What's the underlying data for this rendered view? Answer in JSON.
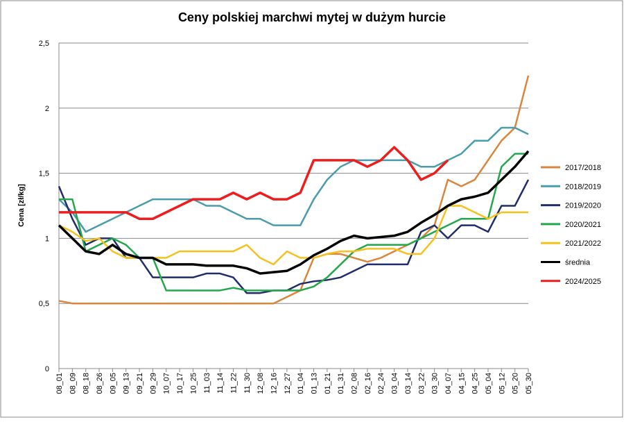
{
  "chart_data": {
    "type": "line",
    "title": "Ceny polskiej marchwi mytej w dużym hurcie",
    "y_label": "Cena [zł/kg]",
    "categories": [
      "08_01",
      "08_09",
      "08_18",
      "08_26",
      "09_05",
      "09_13",
      "09_21",
      "09_29",
      "10_07",
      "10_17",
      "10_25",
      "11_03",
      "11_14",
      "11_22",
      "11_30",
      "12_08",
      "12_16",
      "12_27",
      "01_04",
      "01_13",
      "01_21",
      "01_31",
      "02_08",
      "02_16",
      "02_24",
      "03_04",
      "03_14",
      "03_22",
      "03_30",
      "04_07",
      "04_15",
      "04_25",
      "05_04",
      "05_12",
      "05_20",
      "05_30"
    ],
    "ylim": [
      0,
      2.5
    ],
    "yticks": [
      0,
      {
        "value": 0.5,
        "label": "0,5"
      },
      1,
      {
        "value": 1.5,
        "label": "1,5"
      },
      2,
      {
        "value": 2.5,
        "label": "2,5"
      }
    ],
    "grid": true,
    "legend": "right",
    "series": [
      {
        "name": "2017/2018",
        "color": "#d9853b",
        "values": [
          0.52,
          0.5,
          0.5,
          0.5,
          0.5,
          0.5,
          0.5,
          0.5,
          0.5,
          0.5,
          0.5,
          0.5,
          0.5,
          0.5,
          0.5,
          0.5,
          0.5,
          0.55,
          0.6,
          0.85,
          0.88,
          0.88,
          0.85,
          0.82,
          0.85,
          0.9,
          0.95,
          1.0,
          1.1,
          1.45,
          1.4,
          1.45,
          1.6,
          1.75,
          1.85,
          2.25
        ]
      },
      {
        "name": "2018/2019",
        "color": "#4a9bab",
        "values": [
          1.3,
          1.2,
          1.05,
          1.1,
          1.15,
          1.2,
          1.25,
          1.3,
          1.3,
          1.3,
          1.3,
          1.25,
          1.25,
          1.2,
          1.15,
          1.15,
          1.1,
          1.1,
          1.1,
          1.3,
          1.45,
          1.55,
          1.6,
          1.6,
          1.6,
          1.6,
          1.6,
          1.55,
          1.55,
          1.6,
          1.65,
          1.75,
          1.75,
          1.85,
          1.85,
          1.8
        ]
      },
      {
        "name": "2019/2020",
        "color": "#1f2d6b",
        "values": [
          1.4,
          1.15,
          0.95,
          1.0,
          1.0,
          0.85,
          0.85,
          0.7,
          0.7,
          0.7,
          0.7,
          0.73,
          0.73,
          0.7,
          0.58,
          0.58,
          0.6,
          0.6,
          0.65,
          0.67,
          0.68,
          0.7,
          0.75,
          0.8,
          0.8,
          0.8,
          0.8,
          1.05,
          1.1,
          1.0,
          1.1,
          1.1,
          1.05,
          1.25,
          1.25,
          1.45
        ]
      },
      {
        "name": "2020/2021",
        "color": "#22a84a",
        "values": [
          1.3,
          1.3,
          0.9,
          0.95,
          1.0,
          0.95,
          0.85,
          0.85,
          0.6,
          0.6,
          0.6,
          0.6,
          0.6,
          0.62,
          0.6,
          0.6,
          0.6,
          0.6,
          0.6,
          0.63,
          0.7,
          0.8,
          0.9,
          0.95,
          0.95,
          0.95,
          0.95,
          1.0,
          1.05,
          1.1,
          1.15,
          1.15,
          1.15,
          1.55,
          1.65,
          1.65
        ]
      },
      {
        "name": "2021/2022",
        "color": "#f5c11c",
        "values": [
          1.1,
          1.05,
          0.98,
          1.0,
          0.9,
          0.85,
          0.85,
          0.85,
          0.85,
          0.9,
          0.9,
          0.9,
          0.9,
          0.9,
          0.95,
          0.85,
          0.8,
          0.9,
          0.85,
          0.85,
          0.88,
          0.9,
          0.9,
          0.92,
          0.92,
          0.92,
          0.88,
          0.88,
          1.0,
          1.25,
          1.25,
          1.2,
          1.15,
          1.2,
          1.2,
          1.2
        ]
      },
      {
        "name": "średnia",
        "color": "#000000",
        "values": [
          1.1,
          1.0,
          0.9,
          0.88,
          0.95,
          0.88,
          0.85,
          0.85,
          0.8,
          0.8,
          0.8,
          0.79,
          0.79,
          0.79,
          0.77,
          0.73,
          0.74,
          0.75,
          0.8,
          0.87,
          0.92,
          0.98,
          1.02,
          1.0,
          1.01,
          1.02,
          1.05,
          1.12,
          1.18,
          1.25,
          1.3,
          1.32,
          1.35,
          1.45,
          1.55,
          1.67
        ]
      },
      {
        "name": "2024/2025",
        "color": "#ee1c1c",
        "values": [
          1.2,
          1.2,
          1.2,
          1.2,
          1.2,
          1.2,
          1.15,
          1.15,
          1.2,
          1.25,
          1.3,
          1.3,
          1.3,
          1.35,
          1.3,
          1.35,
          1.3,
          1.3,
          1.35,
          1.6,
          1.6,
          1.6,
          1.6,
          1.55,
          1.6,
          1.7,
          1.6,
          1.45,
          1.5,
          1.6,
          null,
          null,
          null,
          null,
          null,
          null
        ]
      }
    ]
  }
}
